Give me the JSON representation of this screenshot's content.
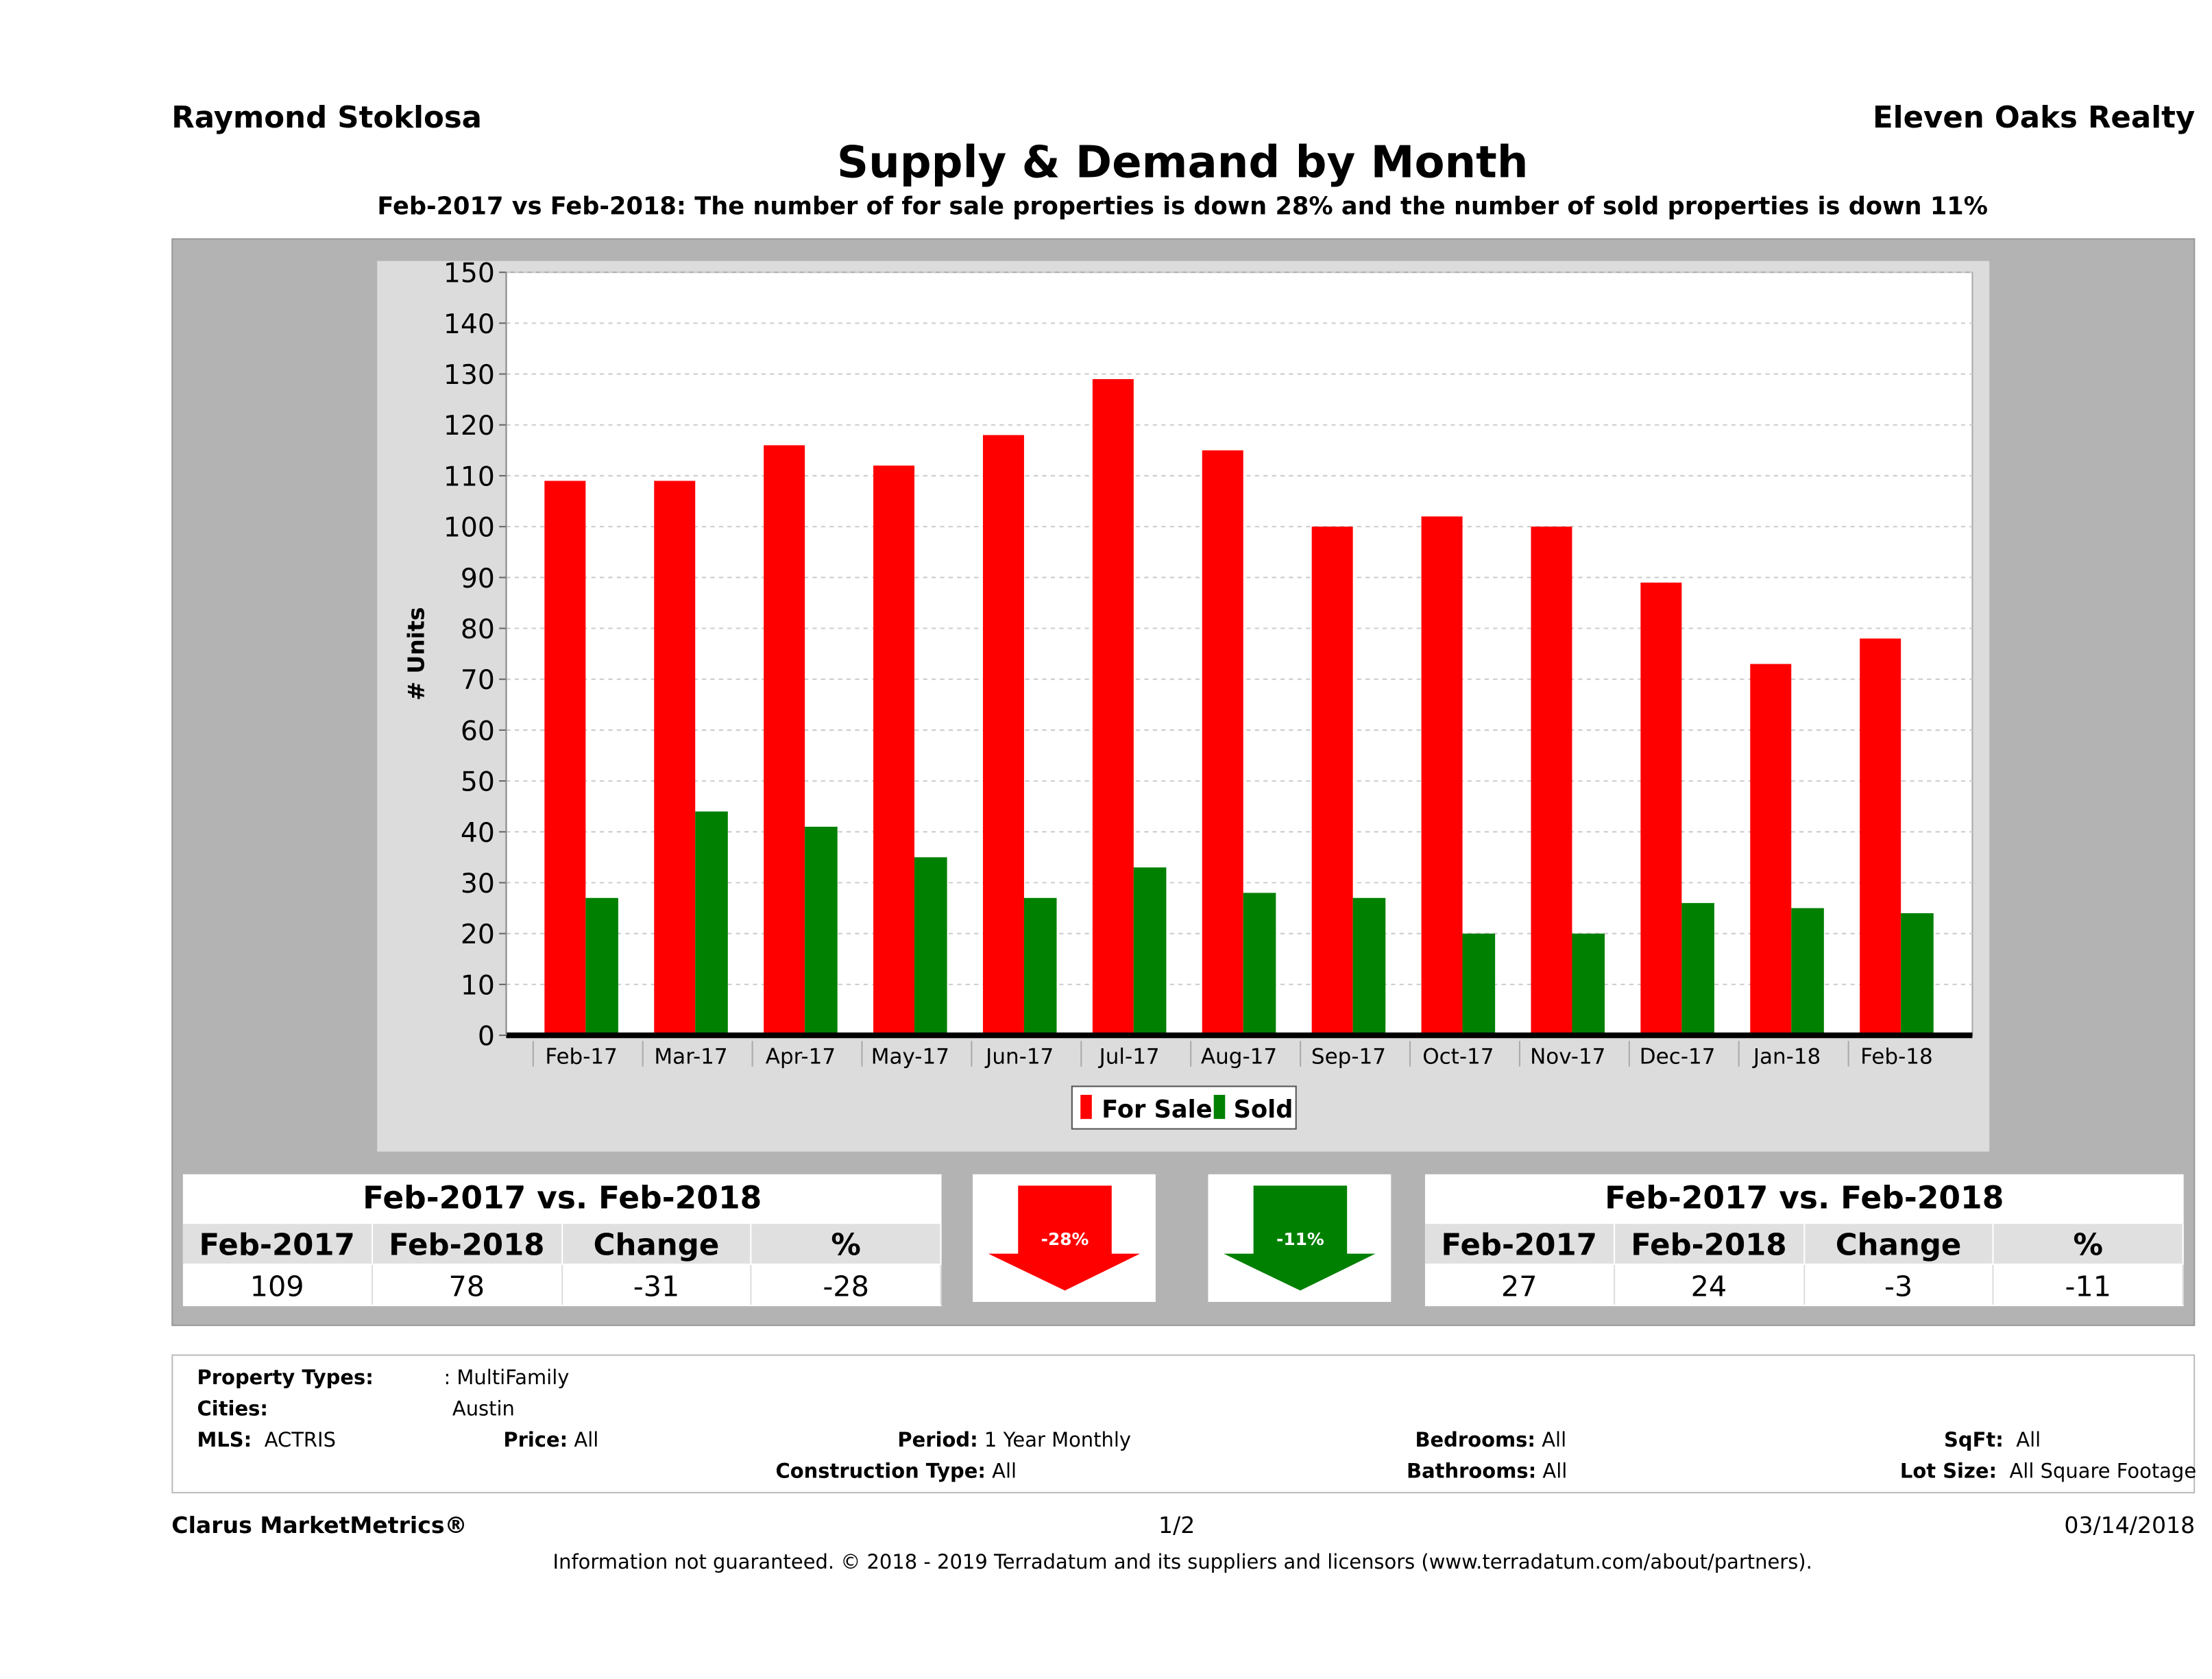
{
  "header": {
    "agent": "Raymond Stoklosa",
    "brokerage": "Eleven Oaks Realty",
    "title": "Supply & Demand by Month",
    "subtitle": "Feb-2017 vs Feb-2018: The number of for sale properties is down 28% and the number of sold properties is down 11%"
  },
  "chart_data": {
    "type": "bar",
    "ylabel": "# Units",
    "ylim": [
      0,
      150
    ],
    "yticks": [
      0,
      10,
      20,
      30,
      40,
      50,
      60,
      70,
      80,
      90,
      100,
      110,
      120,
      130,
      140,
      150
    ],
    "grid": true,
    "legend": "bottom",
    "categories": [
      "Feb-17",
      "Mar-17",
      "Apr-17",
      "May-17",
      "Jun-17",
      "Jul-17",
      "Aug-17",
      "Sep-17",
      "Oct-17",
      "Nov-17",
      "Dec-17",
      "Jan-18",
      "Feb-18"
    ],
    "series": [
      {
        "name": "For Sale",
        "color": "#ff0000",
        "values": [
          109,
          109,
          116,
          112,
          118,
          129,
          115,
          100,
          102,
          100,
          89,
          73,
          78
        ]
      },
      {
        "name": "Sold",
        "color": "#008000",
        "values": [
          27,
          44,
          41,
          35,
          27,
          33,
          28,
          27,
          20,
          20,
          26,
          25,
          24
        ]
      }
    ]
  },
  "for_sale_table": {
    "title": "Feb-2017 vs. Feb-2018",
    "headers": [
      "Feb-2017",
      "Feb-2018",
      "Change",
      "%"
    ],
    "values": [
      "109",
      "78",
      "-31",
      "-28"
    ],
    "arrow_label": "-28%",
    "arrow_color": "#ff0000"
  },
  "sold_table": {
    "title": "Feb-2017 vs. Feb-2018",
    "headers": [
      "Feb-2017",
      "Feb-2018",
      "Change",
      "%"
    ],
    "values": [
      "27",
      "24",
      "-3",
      "-11"
    ],
    "arrow_label": "-11%",
    "arrow_color": "#008000"
  },
  "criteria": {
    "property_types_label": "Property Types:",
    "property_types": ": MultiFamily",
    "cities_label": "Cities:",
    "cities": "Austin",
    "mls_label": "MLS:",
    "mls": "ACTRIS",
    "price_label": "Price:",
    "price": "All",
    "period_label": "Period:",
    "period": "1 Year Monthly",
    "bedrooms_label": "Bedrooms:",
    "bedrooms": "All",
    "sqft_label": "SqFt:",
    "sqft": "All",
    "construction_label": "Construction Type:",
    "construction": "All",
    "bathrooms_label": "Bathrooms:",
    "bathrooms": "All",
    "lot_label": "Lot Size:",
    "lot": "All Square Footage"
  },
  "footer": {
    "brand": "Clarus MarketMetrics®",
    "page": "1/2",
    "date": "03/14/2018",
    "disclaimer": "Information not guaranteed. © 2018 - 2019 Terradatum and its suppliers and licensors (www.terradatum.com/about/partners)."
  }
}
